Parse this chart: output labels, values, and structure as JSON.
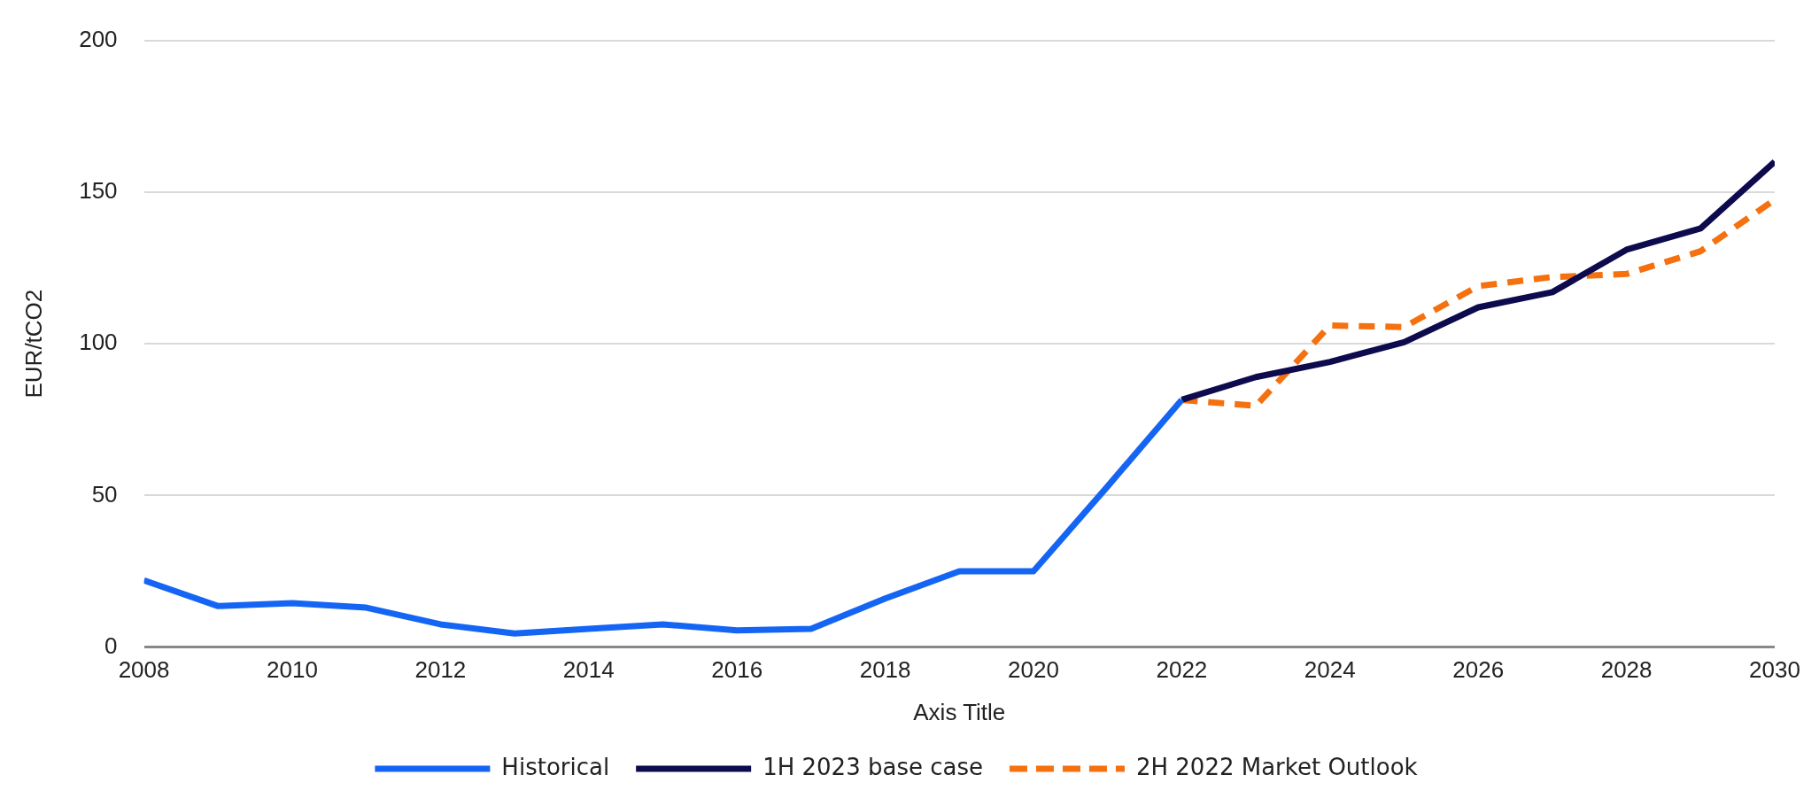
{
  "chart_data": {
    "type": "line",
    "xlabel": "Axis Title",
    "ylabel": "EUR/tCO2",
    "xlim": [
      2008,
      2030
    ],
    "xticks": [
      2008,
      2010,
      2012,
      2014,
      2016,
      2018,
      2020,
      2022,
      2024,
      2026,
      2028,
      2030
    ],
    "ylim": [
      0,
      200
    ],
    "yticks": [
      0,
      50,
      100,
      150,
      200
    ],
    "grid": "y",
    "legend": "bottom",
    "marker": "none",
    "series": [
      {
        "name": "Historical",
        "color": "#1565f5",
        "line_style": "solid",
        "x": [
          2008,
          2009,
          2010,
          2011,
          2012,
          2013,
          2014,
          2015,
          2016,
          2017,
          2018,
          2019,
          2020,
          2021,
          2022
        ],
        "values": [
          22,
          13.5,
          14.5,
          13,
          7.5,
          4.5,
          6,
          7.5,
          5.5,
          6,
          16,
          25,
          25,
          53,
          81.5
        ]
      },
      {
        "name": "1H 2023 base case",
        "color": "#0d0a4d",
        "line_style": "solid",
        "x": [
          2022,
          2023,
          2024,
          2025,
          2026,
          2027,
          2028,
          2029,
          2030
        ],
        "values": [
          81.5,
          89,
          94,
          100.5,
          112,
          117,
          131,
          138,
          160
        ]
      },
      {
        "name": "2H 2022 Market Outlook",
        "color": "#f5700f",
        "line_style": "dashed",
        "x": [
          2022,
          2023,
          2024,
          2025,
          2026,
          2027,
          2028,
          2029,
          2030
        ],
        "values": [
          81.5,
          79.5,
          106,
          105.5,
          119,
          122,
          123,
          130.5,
          147.5
        ]
      }
    ]
  }
}
